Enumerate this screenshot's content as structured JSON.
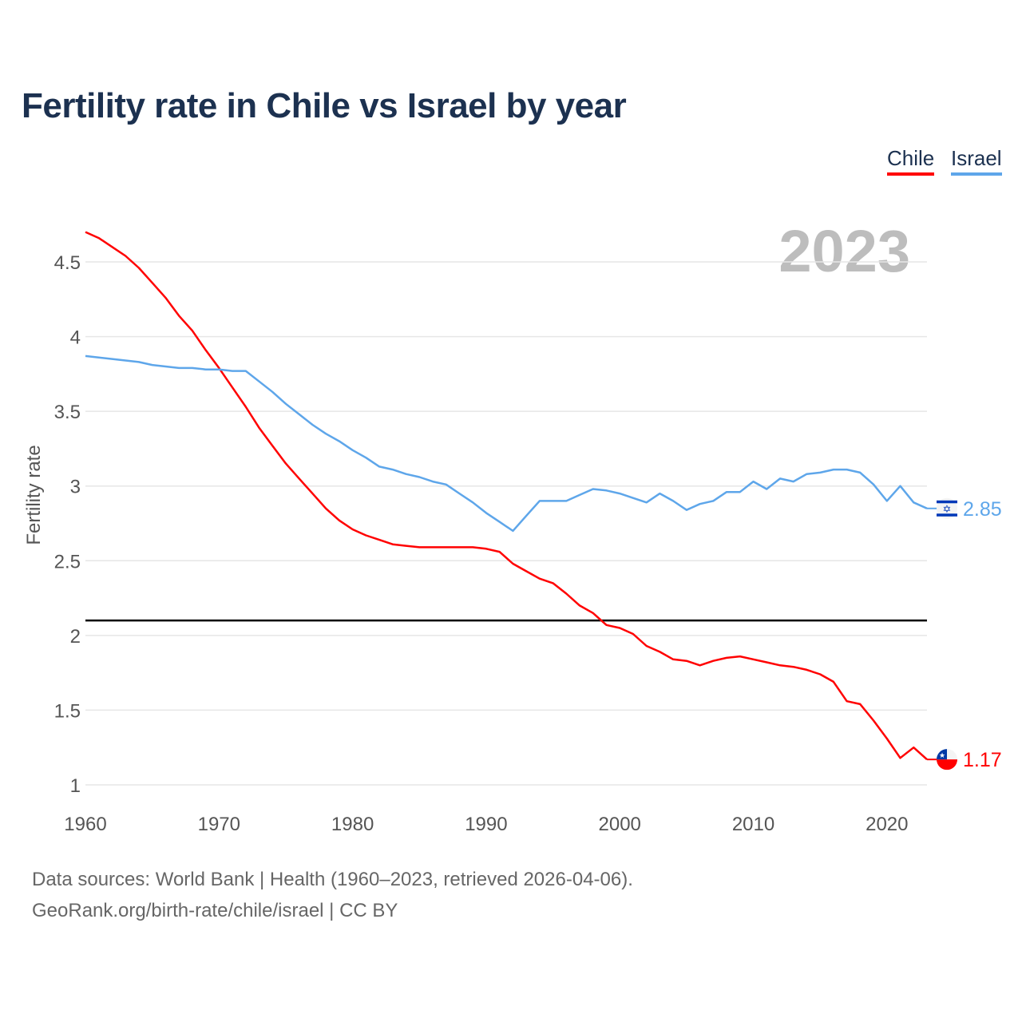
{
  "chart_data": {
    "type": "line",
    "title": "Fertility rate in Chile vs Israel by year",
    "xlabel": "",
    "ylabel": "Fertility rate",
    "xlim": [
      1960,
      2023
    ],
    "ylim": [
      0.9,
      4.75
    ],
    "xticks": [
      1960,
      1970,
      1980,
      1990,
      2000,
      2010,
      2020
    ],
    "yticks": [
      1,
      1.5,
      2,
      2.5,
      3,
      3.5,
      4,
      4.5
    ],
    "ytick_labels": [
      "1",
      "1.5",
      "2",
      "2.5",
      "3",
      "3.5",
      "4",
      "4.5"
    ],
    "grid": true,
    "legend_placement": "top-right",
    "current_year_label": "2023",
    "reference_line": 2.1,
    "x_start": 1960,
    "series": [
      {
        "name": "Chile",
        "color": "#ff0000",
        "end_label": "1.17",
        "values": [
          4.7,
          4.66,
          4.6,
          4.54,
          4.46,
          4.36,
          4.26,
          4.14,
          4.04,
          3.91,
          3.79,
          3.66,
          3.53,
          3.39,
          3.27,
          3.15,
          3.05,
          2.95,
          2.85,
          2.77,
          2.71,
          2.67,
          2.64,
          2.61,
          2.6,
          2.59,
          2.59,
          2.59,
          2.59,
          2.59,
          2.58,
          2.56,
          2.48,
          2.43,
          2.38,
          2.35,
          2.28,
          2.2,
          2.15,
          2.07,
          2.05,
          2.01,
          1.93,
          1.89,
          1.84,
          1.83,
          1.8,
          1.83,
          1.85,
          1.86,
          1.84,
          1.82,
          1.8,
          1.79,
          1.77,
          1.74,
          1.69,
          1.56,
          1.54,
          1.43,
          1.31,
          1.18,
          1.25,
          1.17
        ]
      },
      {
        "name": "Israel",
        "color": "#5ea6ea",
        "end_label": "2.85",
        "values": [
          3.87,
          3.86,
          3.85,
          3.84,
          3.83,
          3.81,
          3.8,
          3.79,
          3.79,
          3.78,
          3.78,
          3.77,
          3.77,
          3.7,
          3.63,
          3.55,
          3.48,
          3.41,
          3.35,
          3.3,
          3.24,
          3.19,
          3.13,
          3.11,
          3.08,
          3.06,
          3.03,
          3.01,
          2.95,
          2.89,
          2.82,
          2.76,
          2.7,
          2.8,
          2.9,
          2.9,
          2.9,
          2.94,
          2.98,
          2.97,
          2.95,
          2.92,
          2.89,
          2.95,
          2.9,
          2.84,
          2.88,
          2.9,
          2.96,
          2.96,
          3.03,
          2.98,
          3.05,
          3.03,
          3.08,
          3.09,
          3.11,
          3.11,
          3.09,
          3.01,
          2.9,
          3.0,
          2.89,
          2.85
        ]
      }
    ]
  },
  "footer": {
    "line1": "Data sources: World Bank | Health (1960–2023, retrieved 2026-04-06).",
    "line2": "GeoRank.org/birth-rate/chile/israel | CC BY"
  }
}
